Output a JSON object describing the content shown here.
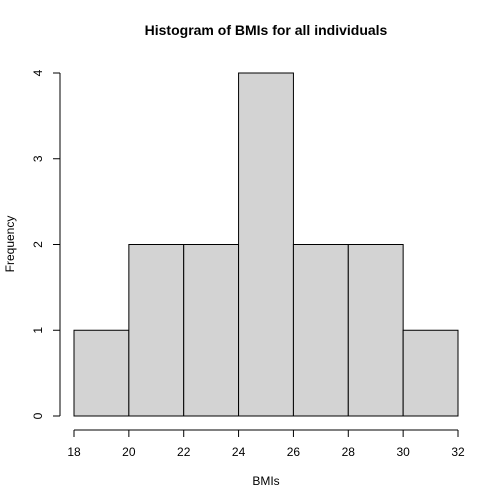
{
  "chart_data": {
    "type": "bar",
    "title": "Histogram of BMIs for all individuals",
    "xlabel": "BMIs",
    "ylabel": "Frequency",
    "bins": [
      {
        "from": 18,
        "to": 20,
        "count": 1
      },
      {
        "from": 20,
        "to": 22,
        "count": 2
      },
      {
        "from": 22,
        "to": 24,
        "count": 2
      },
      {
        "from": 24,
        "to": 26,
        "count": 4
      },
      {
        "from": 26,
        "to": 28,
        "count": 2
      },
      {
        "from": 28,
        "to": 30,
        "count": 2
      },
      {
        "from": 30,
        "to": 32,
        "count": 1
      }
    ],
    "xlim": [
      18,
      32
    ],
    "ylim": [
      0,
      4
    ],
    "x_ticks": [
      18,
      20,
      22,
      24,
      26,
      28,
      30,
      32
    ],
    "y_ticks": [
      0,
      1,
      2,
      3,
      4
    ],
    "bar_color": "#d3d3d3",
    "grid": false,
    "legend": "none"
  }
}
